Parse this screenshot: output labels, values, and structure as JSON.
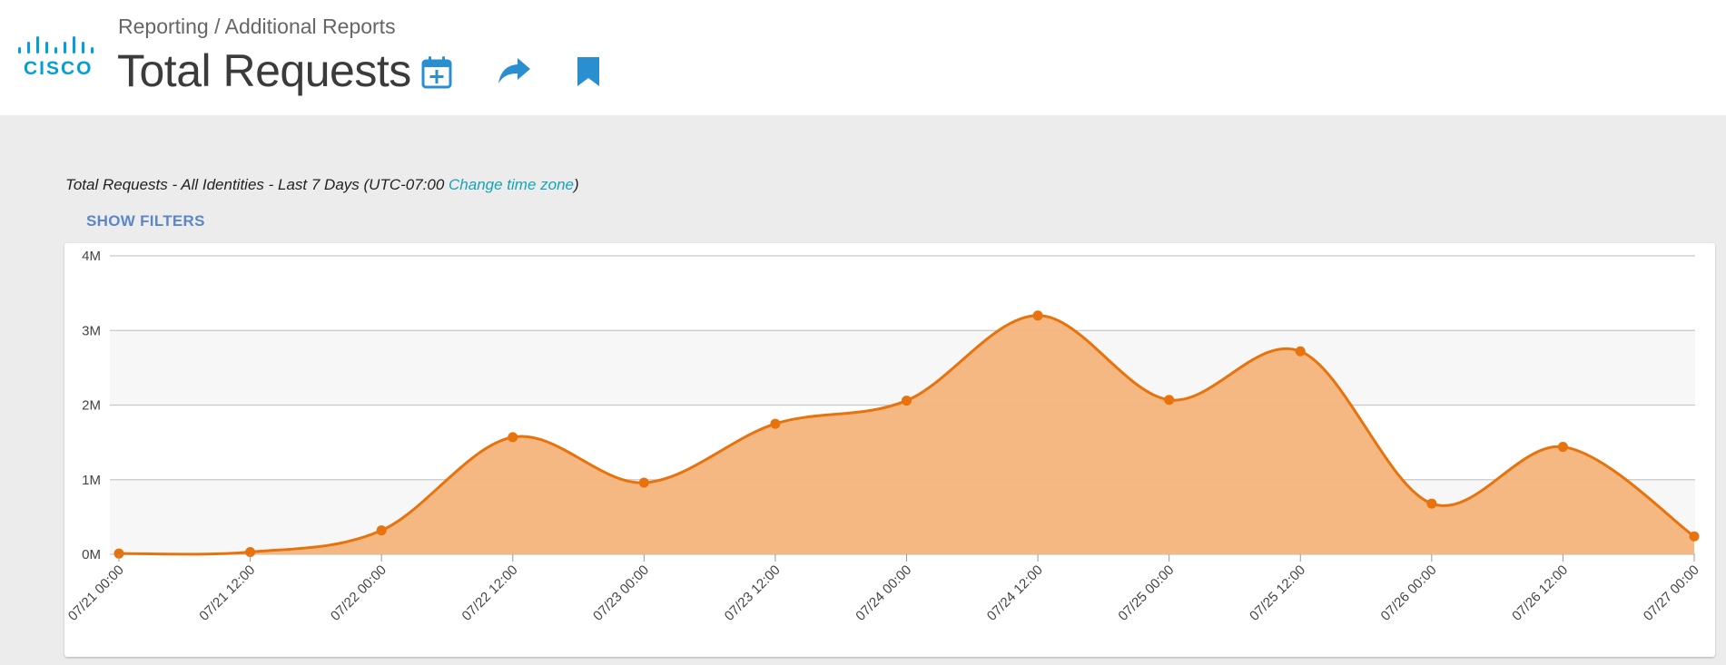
{
  "header": {
    "logo_text": "CISCO",
    "breadcrumb": "Reporting / Additional Reports",
    "title": "Total Requests",
    "icons": [
      "calendar-add-icon",
      "share-icon",
      "bookmark-icon"
    ]
  },
  "report": {
    "subtitle_prefix": "Total Requests - All Identities - Last 7 Days (UTC-07:00 ",
    "change_timezone_label": "Change time zone",
    "subtitle_suffix": ")",
    "show_filters_label": "SHOW FILTERS"
  },
  "colors": {
    "accent": "#049fd9",
    "series_line": "#e8720c",
    "series_fill": "#f6b47b",
    "link": "#17a3b8"
  },
  "chart_data": {
    "type": "area",
    "x": [
      "07/21 00:00",
      "07/21 12:00",
      "07/22 00:00",
      "07/22 12:00",
      "07/23 00:00",
      "07/23 12:00",
      "07/24 00:00",
      "07/24 12:00",
      "07/25 00:00",
      "07/25 12:00",
      "07/26 00:00",
      "07/26 12:00",
      "07/27 00:00"
    ],
    "series": [
      {
        "values": [
          0.01,
          0.03,
          0.32,
          1.57,
          0.96,
          1.75,
          2.06,
          3.2,
          2.07,
          2.72,
          0.68,
          1.44,
          0.24
        ]
      }
    ],
    "yticks": [
      "0M",
      "1M",
      "2M",
      "3M",
      "4M"
    ],
    "ylim": [
      0,
      4
    ],
    "y_unit": "M",
    "grid": true
  }
}
